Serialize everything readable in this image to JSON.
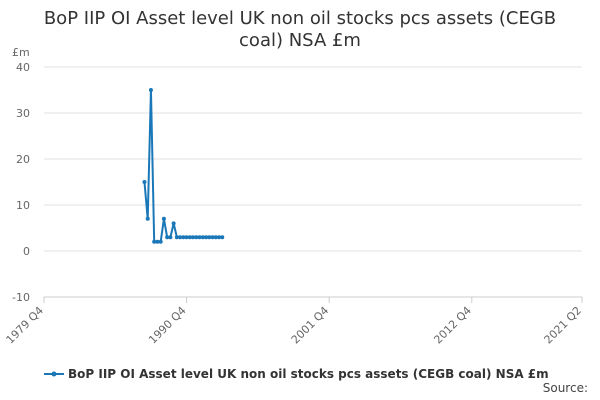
{
  "chart_data": {
    "type": "line",
    "title": "BoP IIP OI Asset level UK non oil stocks pcs assets (CEGB coal) NSA £m",
    "y_label": "£m",
    "source": "Source:",
    "x": [
      "1987 Q3",
      "1987 Q4",
      "1988 Q1",
      "1988 Q2",
      "1988 Q3",
      "1988 Q4",
      "1989 Q1",
      "1989 Q2",
      "1989 Q3",
      "1989 Q4",
      "1990 Q1",
      "1990 Q2",
      "1990 Q3",
      "1990 Q4",
      "1991 Q1",
      "1991 Q2",
      "1991 Q3",
      "1991 Q4",
      "1992 Q1",
      "1992 Q2",
      "1992 Q3",
      "1992 Q4",
      "1993 Q1",
      "1993 Q2",
      "1993 Q3"
    ],
    "series": [
      {
        "name": "BoP IIP OI Asset level UK non oil stocks pcs assets (CEGB coal) NSA £m",
        "color": "#1a78b8",
        "values": [
          15,
          7,
          35,
          2,
          2,
          2,
          7,
          3,
          3,
          6,
          3,
          3,
          3,
          3,
          3,
          3,
          3,
          3,
          3,
          3,
          3,
          3,
          3,
          3,
          3
        ]
      }
    ],
    "xlim": [
      "1979 Q4",
      "2021 Q2"
    ],
    "xticks": [
      "1979 Q4",
      "1990 Q4",
      "2001 Q4",
      "2012 Q4",
      "2021 Q2"
    ],
    "ylim": [
      -10,
      40
    ],
    "yticks": [
      -10,
      0,
      10,
      20,
      30,
      40
    ],
    "grid": true
  }
}
